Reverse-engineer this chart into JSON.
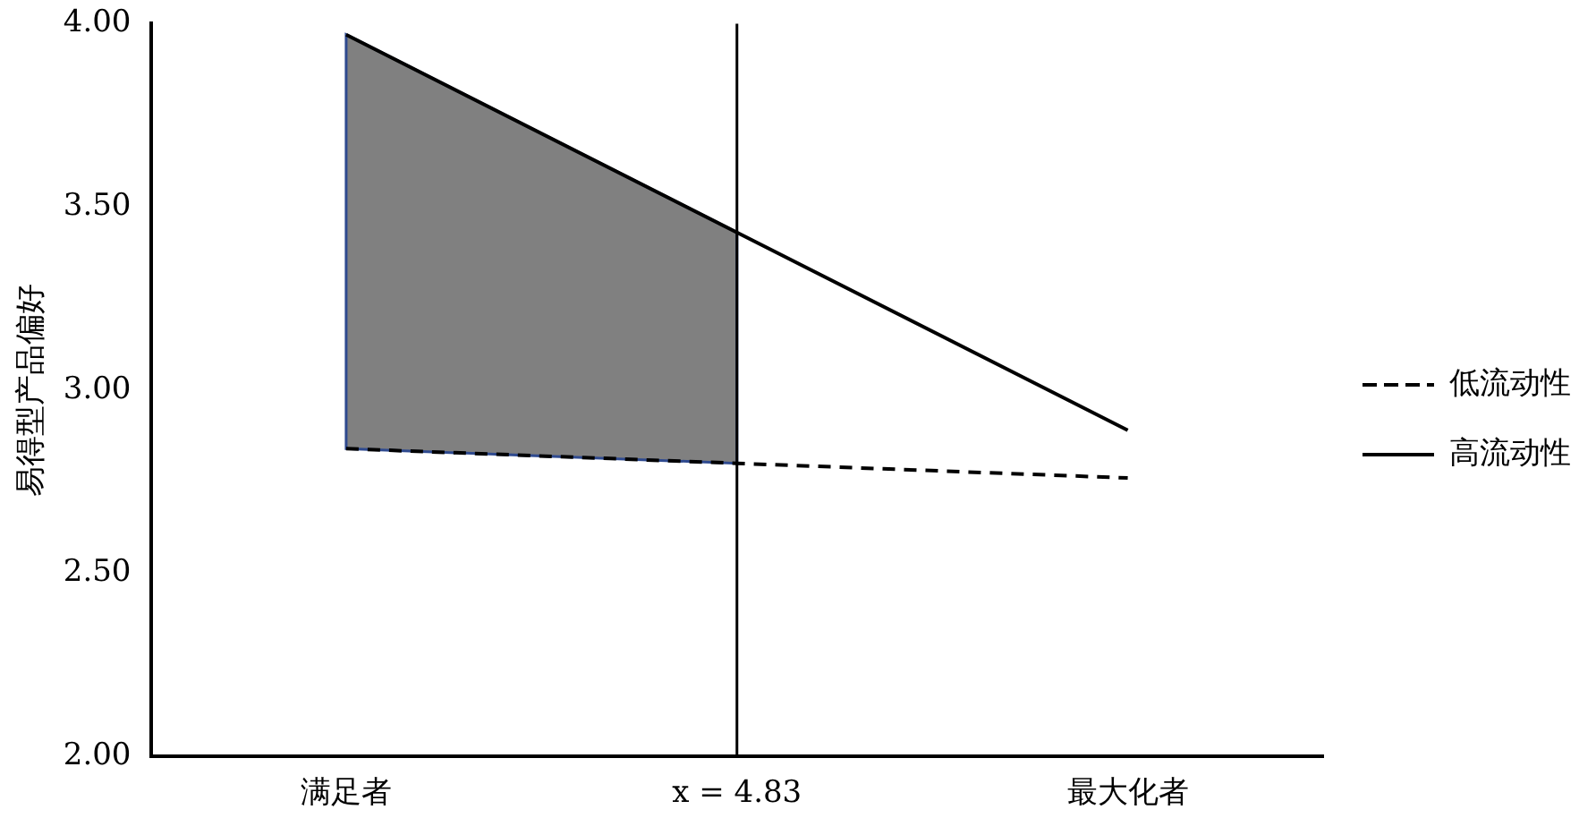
{
  "chart_data": {
    "type": "line",
    "ylabel": "易得型产品偏好",
    "categories": [
      "满足者",
      "x = 4.83",
      "最大化者"
    ],
    "ylim": [
      2,
      4
    ],
    "yticks": [
      {
        "value": 2,
        "label": "2.00"
      },
      {
        "value": 2.5,
        "label": "2.50"
      },
      {
        "value": 3,
        "label": "3.00"
      },
      {
        "value": 3.5,
        "label": "3.50"
      },
      {
        "value": 4,
        "label": "4.00"
      }
    ],
    "series": [
      {
        "name": "低流动性",
        "color": "#000000",
        "values": [
          2.84,
          2.8,
          2.76
        ],
        "line_style": "dashed"
      },
      {
        "name": "高流动性",
        "color": "#000000",
        "values": [
          3.97,
          3.43,
          2.89
        ],
        "line_style": "solid",
        "lower": [
          2.84,
          2.8,
          null
        ],
        "upper": [
          3.97,
          3.43,
          null
        ]
      }
    ],
    "ref_lines": [
      {
        "axis": "x",
        "value": "x = 4.83",
        "color": "#000000"
      }
    ],
    "grid": false,
    "legend": "right",
    "marker": "none"
  }
}
